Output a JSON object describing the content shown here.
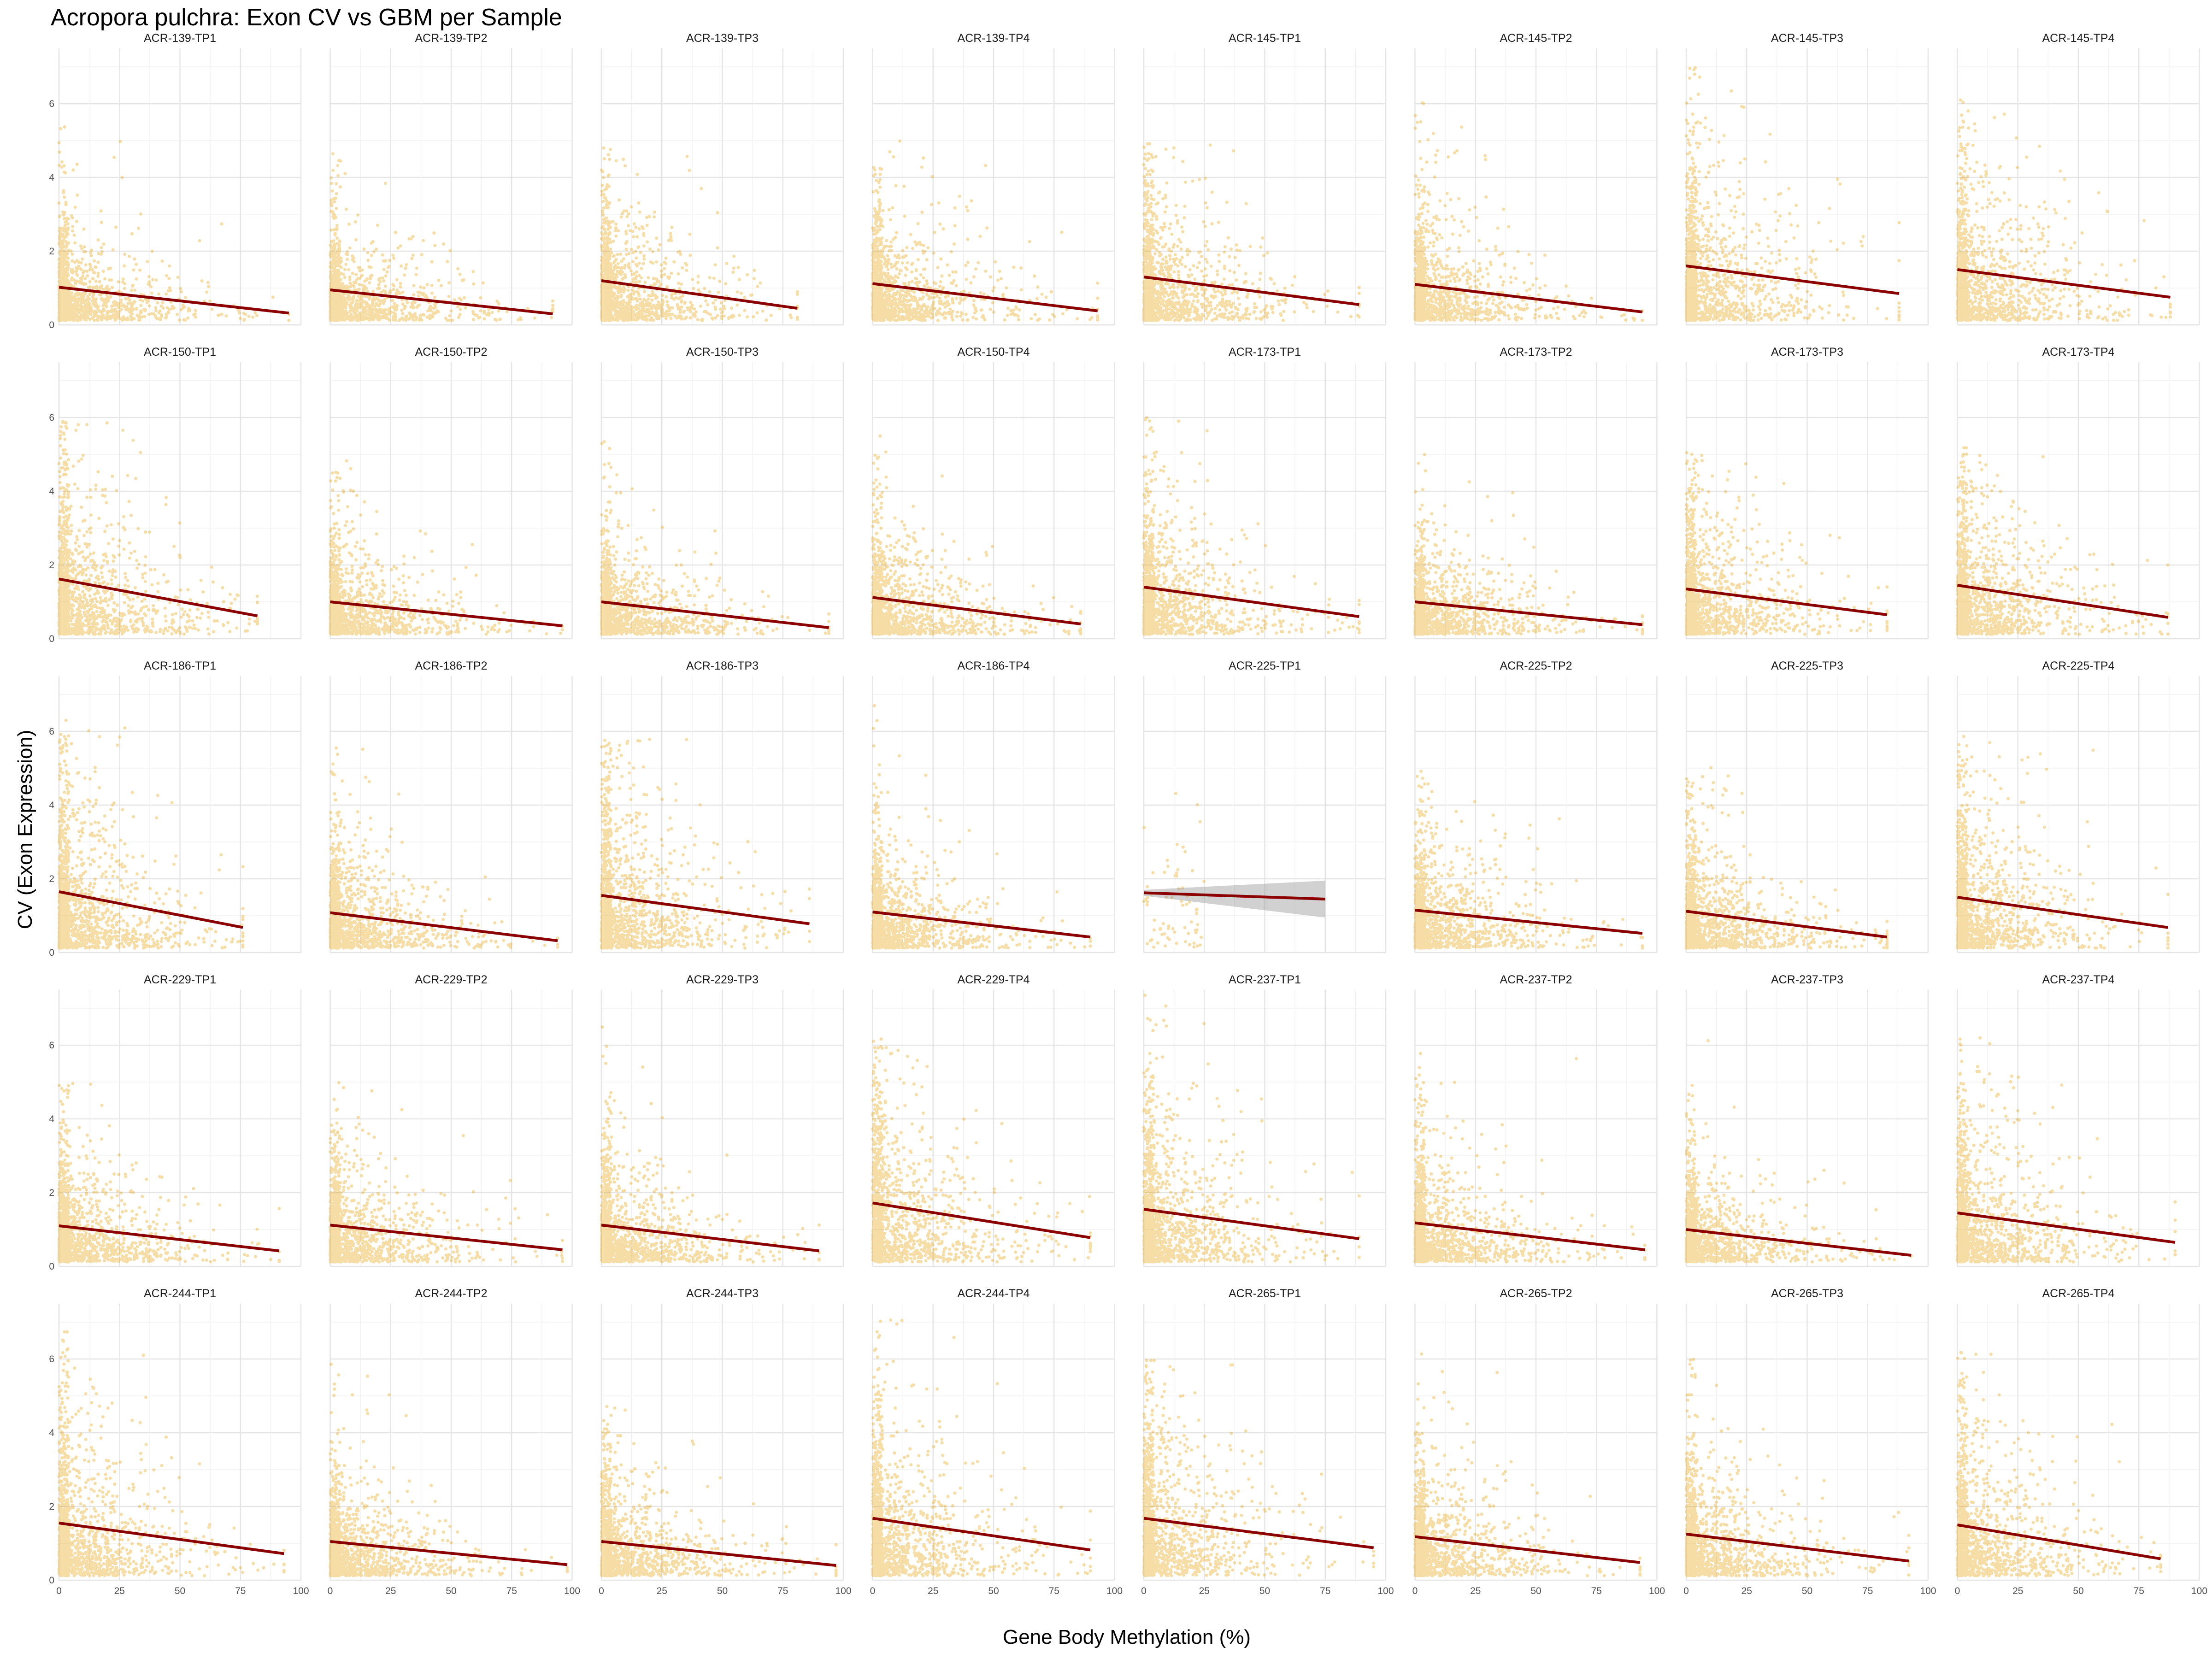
{
  "chart_data": {
    "type": "scatter",
    "title": "Acropora pulchra: Exon CV vs GBM per Sample",
    "xlabel": "Gene Body Methylation (%)",
    "ylabel": "CV (Exon Expression)",
    "xlim": [
      0,
      100
    ],
    "ylim": [
      0,
      7.5
    ],
    "x_ticks": [
      "0",
      "25",
      "50",
      "75",
      "100"
    ],
    "y_ticks": [
      "0",
      "2",
      "4",
      "6"
    ],
    "grid": true,
    "point_color": "#E69F00",
    "fit_line_color": "#8B0000",
    "confidence_band_color": "#999999",
    "facets": [
      {
        "label": "ACR-139-TP1",
        "fit": {
          "x": [
            0,
            95
          ],
          "y": [
            1.02,
            0.32
          ]
        },
        "ymax": 6.2,
        "xmax": 95
      },
      {
        "label": "ACR-139-TP2",
        "fit": {
          "x": [
            0,
            92
          ],
          "y": [
            0.95,
            0.3
          ]
        },
        "ymax": 5.2,
        "xmax": 92
      },
      {
        "label": "ACR-139-TP3",
        "fit": {
          "x": [
            0,
            81
          ],
          "y": [
            1.2,
            0.45
          ]
        },
        "ymax": 5.0,
        "xmax": 81
      },
      {
        "label": "ACR-139-TP4",
        "fit": {
          "x": [
            0,
            93
          ],
          "y": [
            1.12,
            0.38
          ]
        },
        "ymax": 5.1,
        "xmax": 93
      },
      {
        "label": "ACR-145-TP1",
        "fit": {
          "x": [
            0,
            89
          ],
          "y": [
            1.3,
            0.55
          ]
        },
        "ymax": 5.0,
        "xmax": 89
      },
      {
        "label": "ACR-145-TP2",
        "fit": {
          "x": [
            0,
            94
          ],
          "y": [
            1.1,
            0.35
          ]
        },
        "ymax": 6.1,
        "xmax": 94
      },
      {
        "label": "ACR-145-TP3",
        "fit": {
          "x": [
            0,
            88
          ],
          "y": [
            1.6,
            0.85
          ]
        },
        "ymax": 7.1,
        "xmax": 88
      },
      {
        "label": "ACR-145-TP4",
        "fit": {
          "x": [
            0,
            88
          ],
          "y": [
            1.5,
            0.75
          ]
        },
        "ymax": 6.3,
        "xmax": 88
      },
      {
        "label": "ACR-150-TP1",
        "fit": {
          "x": [
            0,
            82
          ],
          "y": [
            1.62,
            0.62
          ]
        },
        "ymax": 5.9,
        "xmax": 82
      },
      {
        "label": "ACR-150-TP2",
        "fit": {
          "x": [
            0,
            96
          ],
          "y": [
            1.0,
            0.35
          ]
        },
        "ymax": 5.0,
        "xmax": 96
      },
      {
        "label": "ACR-150-TP3",
        "fit": {
          "x": [
            0,
            94
          ],
          "y": [
            1.0,
            0.3
          ]
        },
        "ymax": 5.4,
        "xmax": 94
      },
      {
        "label": "ACR-150-TP4",
        "fit": {
          "x": [
            0,
            86
          ],
          "y": [
            1.12,
            0.4
          ]
        },
        "ymax": 5.9,
        "xmax": 86
      },
      {
        "label": "ACR-173-TP1",
        "fit": {
          "x": [
            0,
            89
          ],
          "y": [
            1.4,
            0.6
          ]
        },
        "ymax": 6.1,
        "xmax": 89
      },
      {
        "label": "ACR-173-TP2",
        "fit": {
          "x": [
            0,
            94
          ],
          "y": [
            1.0,
            0.38
          ]
        },
        "ymax": 5.0,
        "xmax": 94
      },
      {
        "label": "ACR-173-TP3",
        "fit": {
          "x": [
            0,
            83
          ],
          "y": [
            1.35,
            0.65
          ]
        },
        "ymax": 5.1,
        "xmax": 83
      },
      {
        "label": "ACR-173-TP4",
        "fit": {
          "x": [
            0,
            87
          ],
          "y": [
            1.45,
            0.58
          ]
        },
        "ymax": 5.2,
        "xmax": 87
      },
      {
        "label": "ACR-186-TP1",
        "fit": {
          "x": [
            0,
            76
          ],
          "y": [
            1.65,
            0.68
          ]
        },
        "ymax": 6.3,
        "xmax": 76
      },
      {
        "label": "ACR-186-TP2",
        "fit": {
          "x": [
            0,
            94
          ],
          "y": [
            1.08,
            0.32
          ]
        },
        "ymax": 5.6,
        "xmax": 94
      },
      {
        "label": "ACR-186-TP3",
        "fit": {
          "x": [
            0,
            86
          ],
          "y": [
            1.55,
            0.78
          ]
        },
        "ymax": 5.8,
        "xmax": 86
      },
      {
        "label": "ACR-186-TP4",
        "fit": {
          "x": [
            0,
            90
          ],
          "y": [
            1.1,
            0.42
          ]
        },
        "ymax": 7.6,
        "xmax": 90
      },
      {
        "label": "ACR-225-TP1",
        "fit": {
          "x": [
            0,
            75
          ],
          "y": [
            1.62,
            1.45
          ]
        },
        "band": {
          "upper": [
            1.7,
            1.95
          ],
          "lower": [
            1.54,
            0.95
          ]
        },
        "ymax": 6.2,
        "xmax": 75,
        "sparse": true
      },
      {
        "label": "ACR-225-TP2",
        "fit": {
          "x": [
            0,
            94
          ],
          "y": [
            1.15,
            0.52
          ]
        },
        "ymax": 5.0,
        "xmax": 94
      },
      {
        "label": "ACR-225-TP3",
        "fit": {
          "x": [
            0,
            83
          ],
          "y": [
            1.12,
            0.42
          ]
        },
        "ymax": 5.2,
        "xmax": 83
      },
      {
        "label": "ACR-225-TP4",
        "fit": {
          "x": [
            0,
            87
          ],
          "y": [
            1.5,
            0.68
          ]
        },
        "ymax": 6.0,
        "xmax": 87
      },
      {
        "label": "ACR-229-TP1",
        "fit": {
          "x": [
            0,
            91
          ],
          "y": [
            1.1,
            0.42
          ]
        },
        "ymax": 5.1,
        "xmax": 91
      },
      {
        "label": "ACR-229-TP2",
        "fit": {
          "x": [
            0,
            96
          ],
          "y": [
            1.12,
            0.45
          ]
        },
        "ymax": 5.0,
        "xmax": 96
      },
      {
        "label": "ACR-229-TP3",
        "fit": {
          "x": [
            0,
            90
          ],
          "y": [
            1.12,
            0.42
          ]
        },
        "ymax": 6.5,
        "xmax": 90
      },
      {
        "label": "ACR-229-TP4",
        "fit": {
          "x": [
            0,
            90
          ],
          "y": [
            1.72,
            0.78
          ]
        },
        "ymax": 6.2,
        "xmax": 90
      },
      {
        "label": "ACR-237-TP1",
        "fit": {
          "x": [
            0,
            89
          ],
          "y": [
            1.55,
            0.75
          ]
        },
        "ymax": 7.4,
        "xmax": 89
      },
      {
        "label": "ACR-237-TP2",
        "fit": {
          "x": [
            0,
            95
          ],
          "y": [
            1.18,
            0.45
          ]
        },
        "ymax": 6.1,
        "xmax": 95
      },
      {
        "label": "ACR-237-TP3",
        "fit": {
          "x": [
            0,
            93
          ],
          "y": [
            1.0,
            0.3
          ]
        },
        "ymax": 6.6,
        "xmax": 93
      },
      {
        "label": "ACR-237-TP4",
        "fit": {
          "x": [
            0,
            90
          ],
          "y": [
            1.45,
            0.65
          ]
        },
        "ymax": 6.2,
        "xmax": 90
      },
      {
        "label": "ACR-244-TP1",
        "fit": {
          "x": [
            0,
            93
          ],
          "y": [
            1.55,
            0.72
          ]
        },
        "ymax": 6.9,
        "xmax": 93
      },
      {
        "label": "ACR-244-TP2",
        "fit": {
          "x": [
            0,
            98
          ],
          "y": [
            1.05,
            0.42
          ]
        },
        "ymax": 6.0,
        "xmax": 98
      },
      {
        "label": "ACR-244-TP3",
        "fit": {
          "x": [
            0,
            97
          ],
          "y": [
            1.05,
            0.4
          ]
        },
        "ymax": 5.0,
        "xmax": 97
      },
      {
        "label": "ACR-244-TP4",
        "fit": {
          "x": [
            0,
            90
          ],
          "y": [
            1.68,
            0.82
          ]
        },
        "ymax": 7.3,
        "xmax": 90
      },
      {
        "label": "ACR-265-TP1",
        "fit": {
          "x": [
            0,
            95
          ],
          "y": [
            1.68,
            0.88
          ]
        },
        "ymax": 6.0,
        "xmax": 95
      },
      {
        "label": "ACR-265-TP2",
        "fit": {
          "x": [
            0,
            93
          ],
          "y": [
            1.18,
            0.48
          ]
        },
        "ymax": 6.2,
        "xmax": 93
      },
      {
        "label": "ACR-265-TP3",
        "fit": {
          "x": [
            0,
            92
          ],
          "y": [
            1.25,
            0.52
          ]
        },
        "ymax": 6.0,
        "xmax": 92
      },
      {
        "label": "ACR-265-TP4",
        "fit": {
          "x": [
            0,
            84
          ],
          "y": [
            1.5,
            0.58
          ]
        },
        "ymax": 6.2,
        "xmax": 84
      }
    ]
  }
}
